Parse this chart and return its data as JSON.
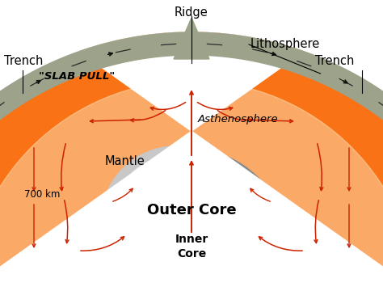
{
  "bg_color": "#ffffff",
  "mantle_outer_color": "#f97316",
  "mantle_inner_color": "#fed7aa",
  "outer_core_dark": "#8b8b8b",
  "outer_core_mid": "#c8c8c8",
  "outer_core_light": "#e8e8e8",
  "inner_core_dark": "#d0d0d0",
  "inner_core_light": "#f0f0f0",
  "lith_color": "#9ca38a",
  "lith_dark": "#6b7560",
  "red": "#cc2200",
  "black": "#111111",
  "labels": {
    "ridge": "Ridge",
    "lithosphere": "Lithosphere",
    "trench_left": "Trench",
    "trench_right": "Trench",
    "slab_pull": "\"SLAB PULL\"",
    "asthenosphere": "Asthenosphere",
    "mantle": "Mantle",
    "depth": "700 km",
    "outer_core": "Outer Core",
    "inner_core": "Inner\nCore"
  },
  "fig_width": 4.74,
  "fig_height": 3.55,
  "dpi": 100
}
